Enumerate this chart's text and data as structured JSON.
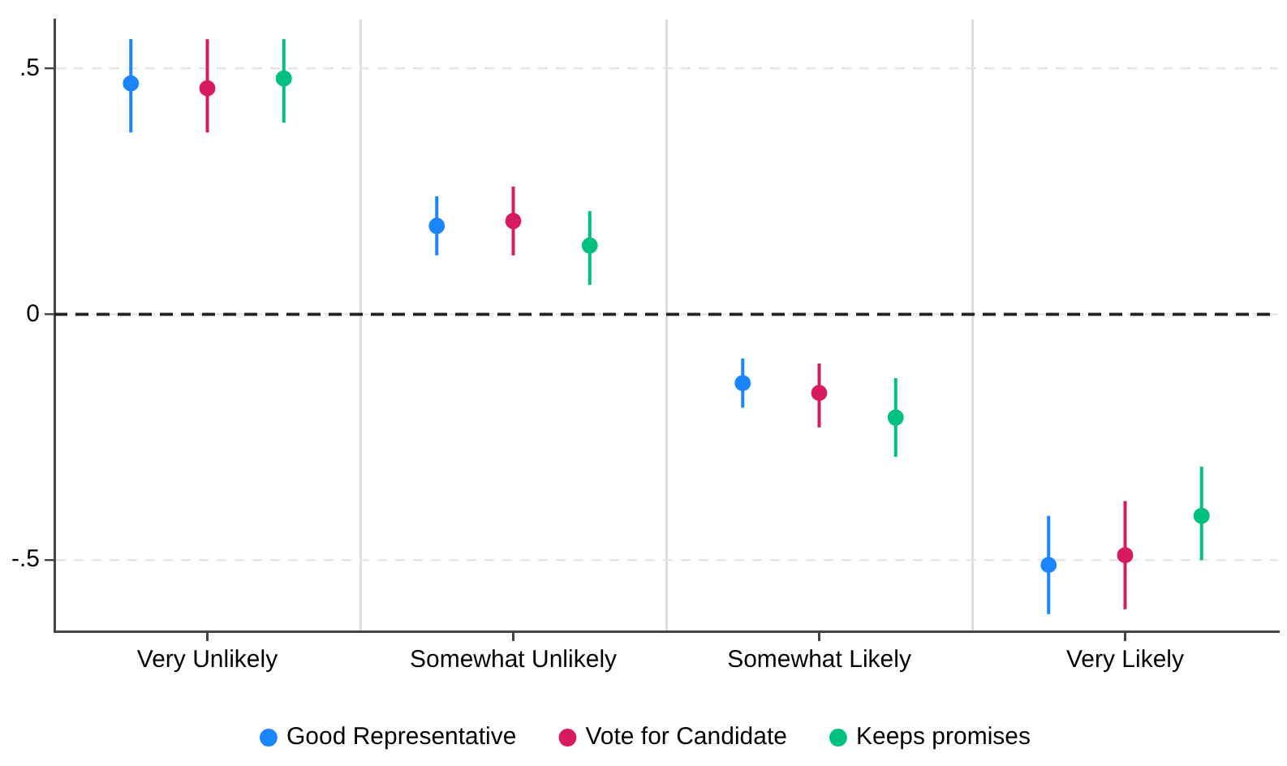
{
  "chart_data": {
    "type": "scatter",
    "categories": [
      "Very Unlikely",
      "Somewhat Unlikely",
      "Somewhat Likely",
      "Very Likely"
    ],
    "series": [
      {
        "name": "Good Representative",
        "color": "#1a85ff",
        "values": [
          0.47,
          0.18,
          -0.14,
          -0.51
        ],
        "errors": [
          [
            0.37,
            0.56
          ],
          [
            0.12,
            0.24
          ],
          [
            -0.19,
            -0.09
          ],
          [
            -0.61,
            -0.41
          ]
        ]
      },
      {
        "name": "Vote for Candidate",
        "color": "#d81b60",
        "values": [
          0.46,
          0.19,
          -0.16,
          -0.49
        ],
        "errors": [
          [
            0.37,
            0.56
          ],
          [
            0.12,
            0.26
          ],
          [
            -0.23,
            -0.1
          ],
          [
            -0.6,
            -0.38
          ]
        ]
      },
      {
        "name": "Keeps promises",
        "color": "#00c07f",
        "values": [
          0.48,
          0.14,
          -0.21,
          -0.41
        ],
        "errors": [
          [
            0.39,
            0.56
          ],
          [
            0.06,
            0.21
          ],
          [
            -0.29,
            -0.13
          ],
          [
            -0.5,
            -0.31
          ]
        ]
      }
    ],
    "ylim": [
      -0.645,
      0.6
    ],
    "yticks": [
      {
        "value": -0.5,
        "label": "-.5"
      },
      0,
      {
        "value": 0.5,
        "label": ".5"
      }
    ],
    "ref_lines": [
      {
        "axis": "y",
        "value": 0,
        "color": "#222222",
        "line_style": "dashed"
      }
    ],
    "grid": true,
    "legend": "bottom",
    "marker": "circle"
  }
}
